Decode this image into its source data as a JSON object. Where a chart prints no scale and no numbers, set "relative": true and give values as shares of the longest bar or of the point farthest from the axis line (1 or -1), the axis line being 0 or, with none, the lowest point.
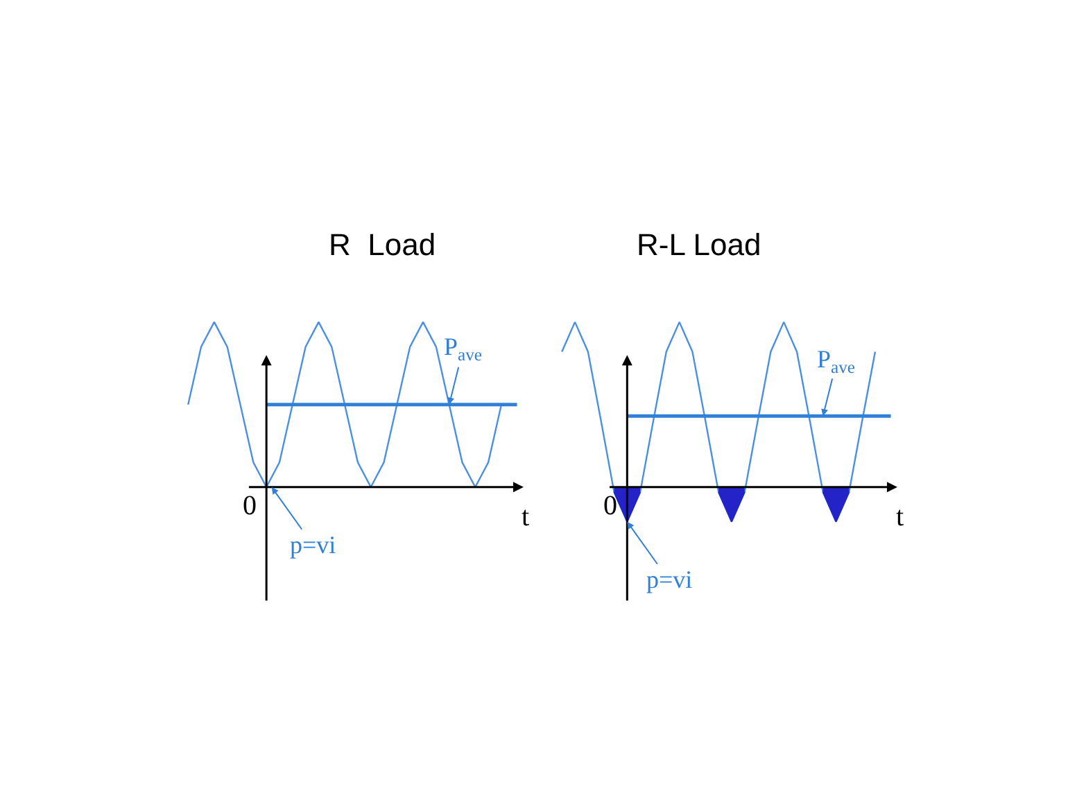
{
  "chart_data": [
    {
      "type": "line",
      "title": "R  Load",
      "relative": true,
      "categories": [
        null,
        null,
        null,
        null,
        null,
        null,
        null,
        null,
        null,
        null,
        null,
        null,
        null,
        null,
        null,
        null,
        null,
        null,
        null,
        null,
        null,
        null,
        null,
        null,
        null
      ],
      "series": [
        {
          "color": "#4a90e2",
          "values": [
            0.5,
            0.85,
            1,
            0.85,
            0.5,
            0.15,
            0,
            0.15,
            0.5,
            0.85,
            1,
            0.85,
            0.5,
            0.15,
            0,
            0.15,
            0.5,
            0.85,
            1,
            0.85,
            0.5,
            0.15,
            0,
            0.15,
            0.5
          ]
        }
      ],
      "ref_lines": [
        {
          "axis": "y",
          "value": 0.5,
          "label": "P$_{ave}$",
          "color": "#2f80d6"
        }
      ],
      "annotations": [
        "p=vi",
        "0",
        "t"
      ]
    },
    {
      "type": "line",
      "title": "R-L Load",
      "relative": true,
      "categories": [
        null,
        null,
        null,
        null,
        null,
        null,
        null,
        null,
        null,
        null,
        null,
        null,
        null,
        null,
        null,
        null,
        null,
        null,
        null,
        null,
        null,
        null,
        null,
        null,
        null
      ],
      "series": [
        {
          "color": "#4a90e2",
          "values": [
            0.82,
            1,
            0.82,
            0.4,
            -0.03,
            -0.21,
            -0.03,
            0.4,
            0.82,
            1,
            0.82,
            0.4,
            -0.03,
            -0.21,
            -0.03,
            0.4,
            0.82,
            1,
            0.82,
            0.4,
            -0.03,
            -0.21,
            -0.03,
            0.4,
            0.82
          ]
        },
        {
          "type": "area",
          "color": "#2323c8",
          "values": [
            null,
            null,
            null,
            null,
            -0.03,
            -0.21,
            -0.03,
            null,
            null,
            null,
            null,
            null,
            -0.03,
            -0.21,
            -0.03,
            null,
            null,
            null,
            null,
            null,
            -0.03,
            -0.21,
            -0.03,
            null,
            null
          ]
        }
      ],
      "ref_lines": [
        {
          "axis": "y",
          "value": 0.43,
          "label": "P$_{ave}$",
          "color": "#2f80d6"
        }
      ],
      "annotations": [
        "p=vi",
        "0",
        "t"
      ]
    }
  ]
}
